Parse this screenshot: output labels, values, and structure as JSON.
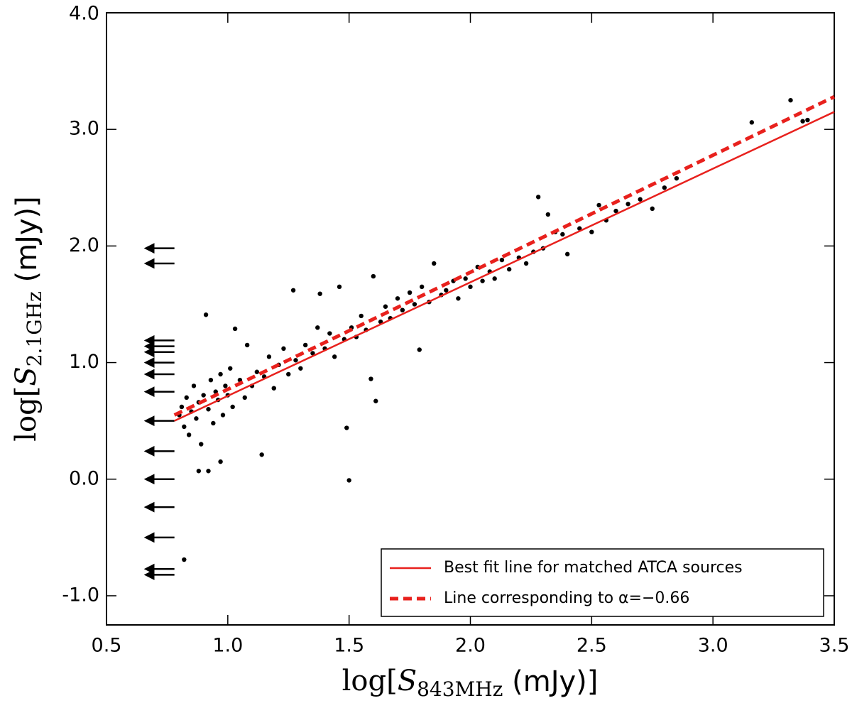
{
  "chart_data": {
    "type": "scatter",
    "xlabel": {
      "prefix": "log[",
      "symbol": "S",
      "sub": "843MHz",
      "suffix": " (mJy)]"
    },
    "ylabel": {
      "prefix": "log[",
      "symbol": "S",
      "sub": "2.1GHz",
      "suffix": " (mJy)]"
    },
    "xlim": [
      0.5,
      3.5
    ],
    "ylim": [
      -1.25,
      4.0
    ],
    "xticks": [
      0.5,
      {
        "value": 1,
        "label": "1.0"
      },
      1.5,
      {
        "value": 2,
        "label": "2.0"
      },
      2.5,
      {
        "value": 3,
        "label": "3.0"
      },
      3.5
    ],
    "yticks": [
      {
        "value": -1,
        "label": "-1.0"
      },
      {
        "value": 0,
        "label": "0.0"
      },
      {
        "value": 1,
        "label": "1.0"
      },
      {
        "value": 2,
        "label": "2.0"
      },
      {
        "value": 3,
        "label": "3.0"
      },
      {
        "value": 4,
        "label": "4.0"
      }
    ],
    "legend": "lower right",
    "series": [
      {
        "name": "Best fit line for matched ATCA sources",
        "color": "#e8211d",
        "style": "solid",
        "x": [
          0.78,
          3.5
        ],
        "values": [
          0.5,
          3.15
        ]
      },
      {
        "name": "Line corresponding to α=−0.66",
        "color": "#e8211d",
        "style": "dashed",
        "x": [
          0.78,
          3.5
        ],
        "values": [
          0.55,
          3.28
        ]
      }
    ],
    "points": {
      "color": "#000000",
      "x": [
        0.8,
        0.81,
        0.82,
        0.83,
        0.84,
        0.85,
        0.86,
        0.87,
        0.88,
        0.89,
        0.9,
        0.91,
        0.92,
        0.93,
        0.94,
        0.95,
        0.96,
        0.97,
        0.98,
        0.99,
        1.0,
        1.01,
        1.02,
        1.03,
        1.05,
        1.07,
        1.08,
        1.1,
        1.12,
        1.14,
        1.15,
        1.17,
        1.19,
        1.21,
        1.23,
        1.25,
        1.27,
        1.28,
        1.3,
        1.32,
        1.35,
        1.37,
        1.38,
        1.4,
        1.42,
        1.44,
        1.46,
        1.48,
        1.49,
        1.5,
        1.51,
        1.53,
        1.55,
        1.57,
        1.59,
        1.6,
        1.61,
        1.63,
        1.65,
        1.67,
        1.7,
        1.72,
        1.75,
        1.77,
        1.79,
        1.8,
        1.83,
        1.85,
        1.88,
        1.9,
        1.93,
        1.95,
        1.98,
        2.0,
        2.03,
        2.05,
        2.08,
        2.1,
        2.13,
        2.16,
        2.2,
        2.23,
        2.26,
        2.28,
        2.3,
        2.32,
        2.35,
        2.38,
        2.4,
        2.45,
        2.5,
        2.53,
        2.56,
        2.6,
        2.65,
        2.7,
        2.75,
        2.8,
        2.85,
        3.16,
        3.32,
        3.37,
        3.39,
        0.82,
        0.88,
        0.92,
        0.97
      ],
      "values": [
        0.55,
        0.62,
        0.45,
        0.7,
        0.38,
        0.58,
        0.8,
        0.52,
        0.66,
        0.3,
        0.72,
        1.41,
        0.6,
        0.85,
        0.48,
        0.75,
        0.68,
        0.9,
        0.55,
        0.8,
        0.72,
        0.95,
        0.62,
        1.29,
        0.85,
        0.7,
        1.15,
        0.8,
        0.92,
        0.21,
        0.88,
        1.05,
        0.78,
        0.98,
        1.12,
        0.9,
        1.62,
        1.02,
        0.95,
        1.15,
        1.08,
        1.3,
        1.59,
        1.12,
        1.25,
        1.05,
        1.65,
        1.2,
        0.44,
        -0.01,
        1.3,
        1.22,
        1.4,
        1.28,
        0.86,
        1.74,
        0.67,
        1.35,
        1.48,
        1.38,
        1.55,
        1.45,
        1.6,
        1.5,
        1.11,
        1.65,
        1.52,
        1.85,
        1.58,
        1.62,
        1.7,
        1.55,
        1.72,
        1.65,
        1.82,
        1.7,
        1.78,
        1.72,
        1.88,
        1.8,
        1.9,
        1.85,
        1.95,
        2.42,
        1.98,
        2.27,
        2.12,
        2.1,
        1.93,
        2.15,
        2.12,
        2.35,
        2.22,
        2.3,
        2.36,
        2.4,
        2.32,
        2.5,
        2.58,
        3.06,
        3.25,
        3.07,
        3.08,
        -0.69,
        0.07,
        0.07,
        0.15
      ]
    },
    "upper_limits": {
      "color": "#000000",
      "x": [
        0.78,
        0.78,
        0.78,
        0.78,
        0.78,
        0.78,
        0.78,
        0.78,
        0.78,
        0.78,
        0.78,
        0.78,
        0.78,
        0.78,
        0.78
      ],
      "values": [
        1.98,
        1.85,
        1.19,
        1.14,
        1.09,
        1.0,
        0.9,
        0.75,
        0.5,
        0.24,
        0.0,
        -0.24,
        -0.5,
        -0.77,
        -0.82
      ]
    }
  }
}
